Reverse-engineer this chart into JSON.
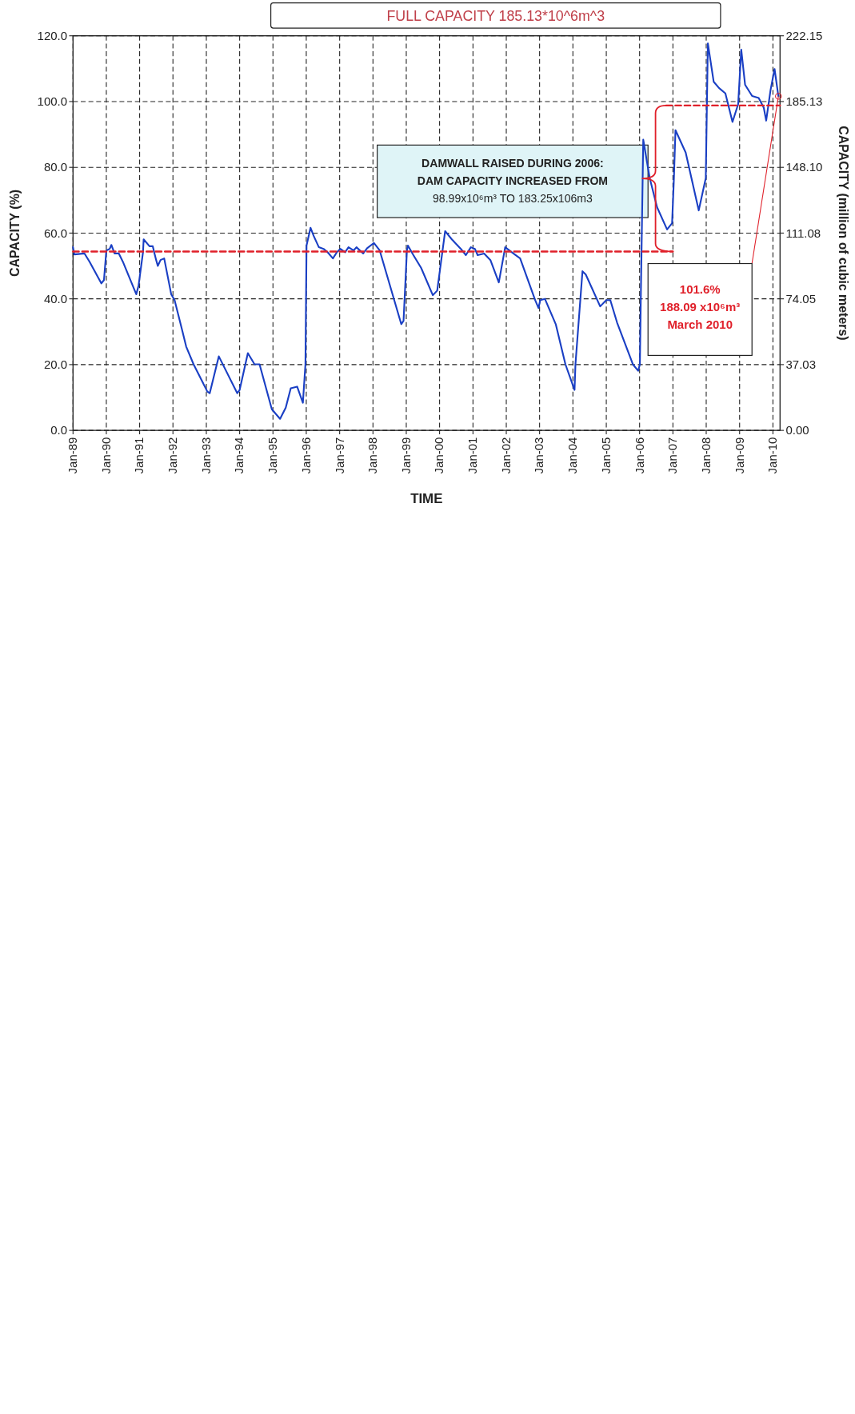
{
  "chart_data": {
    "type": "line",
    "xlabel": "TIME",
    "ylabel": "CAPACITY (%)",
    "y2label": "CAPACITY (million of cubic meters)",
    "xlim": [
      "1989-01-01",
      "2010-03-20"
    ],
    "ylim": [
      0,
      120
    ],
    "y2lim": [
      0,
      222.15
    ],
    "xticks": [
      {
        "value": "1989-01-01",
        "label": "Jan-89"
      },
      {
        "value": "1990-01-01",
        "label": "Jan-90"
      },
      {
        "value": "1991-01-01",
        "label": "Jan-91"
      },
      {
        "value": "1992-01-01",
        "label": "Jan-92"
      },
      {
        "value": "1993-01-01",
        "label": "Jan-93"
      },
      {
        "value": "1994-01-01",
        "label": "Jan-94"
      },
      {
        "value": "1995-01-01",
        "label": "Jan-95"
      },
      {
        "value": "1996-01-01",
        "label": "Jan-96"
      },
      {
        "value": "1997-01-01",
        "label": "Jan-97"
      },
      {
        "value": "1998-01-01",
        "label": "Jan-98"
      },
      {
        "value": "1999-01-01",
        "label": "Jan-99"
      },
      {
        "value": "2000-01-01",
        "label": "Jan-00"
      },
      {
        "value": "2001-01-01",
        "label": "Jan-01"
      },
      {
        "value": "2002-01-01",
        "label": "Jan-02"
      },
      {
        "value": "2003-01-01",
        "label": "Jan-03"
      },
      {
        "value": "2004-01-01",
        "label": "Jan-04"
      },
      {
        "value": "2005-01-01",
        "label": "Jan-05"
      },
      {
        "value": "2006-01-01",
        "label": "Jan-06"
      },
      {
        "value": "2007-01-01",
        "label": "Jan-07"
      },
      {
        "value": "2008-01-01",
        "label": "Jan-08"
      },
      {
        "value": "2009-01-01",
        "label": "Jan-09"
      },
      {
        "value": "2010-01-01",
        "label": "Jan-10"
      }
    ],
    "yticks": [
      {
        "value": 0,
        "label": "0.0"
      },
      {
        "value": 20,
        "label": "20.0"
      },
      {
        "value": 40,
        "label": "40.0"
      },
      {
        "value": 60,
        "label": "60.0"
      },
      {
        "value": 80,
        "label": "80.0"
      },
      {
        "value": 100,
        "label": "100.0"
      },
      {
        "value": 120,
        "label": "120.0"
      }
    ],
    "y2ticks": [
      {
        "value": 0,
        "label": "0.00"
      },
      {
        "value": 37.03,
        "label": "37.03"
      },
      {
        "value": 74.05,
        "label": "74.05"
      },
      {
        "value": 111.08,
        "label": "111.08"
      },
      {
        "value": 148.1,
        "label": "148.10"
      },
      {
        "value": 185.13,
        "label": "185.13"
      },
      {
        "value": 222.15,
        "label": "222.15"
      }
    ],
    "grid": true,
    "marker": "none",
    "line_style": "solid",
    "series": [
      {
        "color": "#1a3fc4",
        "x": [
          "1989-01-01",
          "1989-01-15",
          "1989-05-07",
          "1989-07-01",
          "1989-11-07",
          "1989-12-06",
          "1990-01-01",
          "1990-02-07",
          "1990-02-25",
          "1990-04-01",
          "1990-05-18",
          "1990-07-01",
          "1990-11-25",
          "1990-12-20",
          "1991-02-07",
          "1991-02-14",
          "1991-04-19",
          "1991-05-25",
          "1991-06-13",
          "1991-07-01",
          "1991-07-19",
          "1991-08-18",
          "1991-09-27",
          "1991-12-13",
          "1992-01-19",
          "1992-04-08",
          "1992-05-25",
          "1992-08-14",
          "1993-01-12",
          "1993-02-07",
          "1993-04-26",
          "1993-05-18",
          "1993-12-06",
          "1994-01-01",
          "1994-04-01",
          "1994-06-13",
          "1994-08-07",
          "1994-12-20",
          "1995-03-20",
          "1995-05-21",
          "1995-07-15",
          "1995-09-23",
          "1995-11-25",
          "1995-12-23",
          "1996-01-04",
          "1996-02-17",
          "1996-03-23",
          "1996-05-18",
          "1996-07-08",
          "1996-08-21",
          "1996-10-19",
          "1996-12-02",
          "1997-01-08",
          "1997-03-02",
          "1997-04-08",
          "1997-06-02",
          "1997-07-04",
          "1997-09-16",
          "1997-10-29",
          "1998-01-12",
          "1998-03-16",
          "1998-11-07",
          "1998-12-02",
          "1999-01-08",
          "1999-01-19",
          "1999-03-20",
          "1999-06-13",
          "1999-10-19",
          "1999-12-06",
          "2000-03-02",
          "2000-05-14",
          "2000-08-21",
          "2000-10-15",
          "2000-12-09",
          "2001-01-22",
          "2001-02-21",
          "2001-05-03",
          "2001-07-11",
          "2001-10-11",
          "2001-12-20",
          "2002-03-02",
          "2002-06-02",
          "2002-11-14",
          "2002-12-20",
          "2003-01-08",
          "2003-02-28",
          "2003-06-27",
          "2003-10-11",
          "2004-01-19",
          "2004-01-29",
          "2004-04-15",
          "2004-05-21",
          "2004-10-26",
          "2005-01-01",
          "2005-02-14",
          "2005-04-29",
          "2005-10-19",
          "2005-12-16",
          "2006-01-04",
          "2006-01-15",
          "2006-02-10",
          "2006-04-22",
          "2006-07-11",
          "2006-10-29",
          "2006-12-23",
          "2007-01-12",
          "2007-01-29",
          "2007-05-21",
          "2007-10-11",
          "2007-12-27",
          "2008-01-19",
          "2008-03-23",
          "2008-05-21",
          "2008-07-29",
          "2008-10-15",
          "2008-12-16",
          "2009-01-19",
          "2009-03-02",
          "2009-05-18",
          "2009-07-29",
          "2009-09-23",
          "2009-10-19",
          "2009-12-06",
          "2010-01-19",
          "2010-03-02"
        ],
        "values": [
          55.7,
          53.5,
          53.8,
          51.3,
          44.7,
          45.7,
          54.7,
          55.2,
          56.4,
          53.8,
          53.8,
          51.3,
          41.4,
          44.0,
          54.2,
          58.1,
          56.0,
          56.0,
          53.8,
          51.8,
          50.0,
          51.8,
          52.3,
          41.4,
          39.6,
          30.8,
          25.5,
          20.1,
          11.8,
          11.3,
          20.1,
          22.5,
          11.3,
          12.3,
          23.5,
          20.1,
          20.1,
          6.4,
          3.5,
          6.9,
          12.8,
          13.3,
          8.4,
          20.1,
          56.2,
          61.6,
          59.1,
          55.7,
          55.2,
          54.2,
          52.3,
          54.2,
          55.2,
          54.2,
          55.7,
          54.7,
          55.7,
          53.8,
          55.4,
          57.0,
          54.7,
          32.3,
          33.3,
          54.7,
          56.2,
          53.3,
          49.4,
          41.1,
          42.5,
          60.6,
          58.1,
          55.2,
          53.3,
          55.7,
          55.2,
          53.3,
          53.8,
          51.8,
          45.0,
          55.7,
          54.2,
          52.3,
          39.6,
          37.2,
          39.6,
          40.0,
          32.3,
          20.1,
          12.3,
          20.1,
          48.4,
          47.4,
          37.7,
          39.6,
          39.6,
          32.8,
          20.1,
          18.1,
          20.1,
          41.6,
          88.4,
          76.7,
          67.9,
          61.1,
          63.0,
          76.7,
          91.3,
          84.5,
          66.9,
          76.7,
          117.7,
          106.0,
          104.1,
          102.5,
          93.8,
          99.2,
          115.8,
          105.1,
          101.7,
          101.1,
          98.1,
          94.2,
          103.5,
          109.9,
          101.6
        ]
      },
      {
        "color": "#e0202a",
        "line_style": "dashed",
        "x": [
          "1989-01-01",
          "2007-01-01"
        ],
        "values": [
          54.4,
          54.4
        ]
      },
      {
        "color": "#e0202a",
        "line_style": "dashed",
        "x": [
          "2006-10-19",
          "2010-03-20"
        ],
        "values": [
          98.8,
          98.8
        ]
      }
    ],
    "annotations": [
      "FULL CAPACITY 185.13*10^6m^3",
      "DAMWALL RAISED DURING 2006:\nDAM CAPACITY INCREASED FROM\n98.99x10⁶m³ TO 183.25x106m3",
      "101.6%\n188.09 x10⁶m³\nMarch 2010"
    ]
  }
}
